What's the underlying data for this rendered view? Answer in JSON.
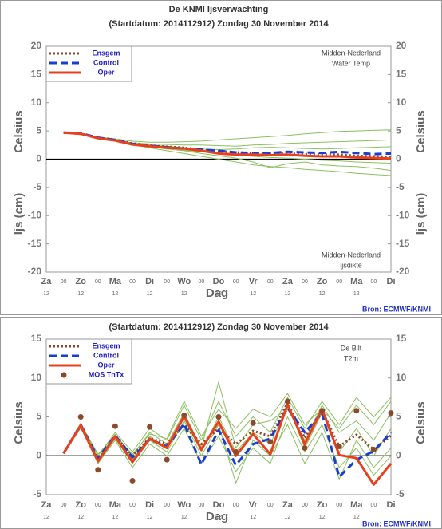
{
  "chart_data": [
    {
      "type": "line",
      "title": "De KNMI Ijsverwachting",
      "subtitle": "(Startdatum: 2014112912)   Zondag    30 November  2014",
      "categories": [
        "Za",
        "00",
        "Zo",
        "00",
        "Ma",
        "00",
        "Di",
        "00",
        "Wo",
        "00",
        "Do",
        "00",
        "Vr",
        "00",
        "Za",
        "00",
        "Zo",
        "00",
        "Ma",
        "00",
        "Di"
      ],
      "sublabels": [
        "12",
        null,
        "12",
        null,
        "12",
        null,
        "12",
        null,
        "12",
        null,
        "12",
        null,
        "12",
        null,
        "12",
        null,
        "12",
        null,
        "12",
        null,
        null
      ],
      "xlabel": "Dag",
      "ylabel": [
        "Celsius",
        "Ijs (cm)"
      ],
      "ylim": [
        -20,
        20
      ],
      "yticks": [
        -20,
        -15,
        -10,
        -5,
        0,
        5,
        10,
        15,
        20
      ],
      "annotations": [
        "Midden-Nederland",
        "Water Temp",
        "Midden-Nederland",
        "ijsdikte"
      ],
      "source": "Bron: ECMWF/KNMI",
      "legend": "top-left",
      "zero_line": true,
      "series": [
        {
          "color": "#8cbf60",
          "style": "member",
          "values": [
            null,
            4.7,
            4.6,
            3.9,
            3.6,
            3.2,
            3.0,
            3.0,
            3.1,
            3.2,
            3.4,
            3.6,
            3.8,
            4.0,
            4.2,
            4.5,
            4.7,
            4.9,
            5.0,
            5.1,
            5.2
          ]
        },
        {
          "color": "#8cbf60",
          "style": "member",
          "values": [
            null,
            4.7,
            4.5,
            3.7,
            3.2,
            2.5,
            2.0,
            1.5,
            1.0,
            0.5,
            0.0,
            -0.5,
            -1.0,
            -1.3,
            -1.5,
            -1.8,
            -2.0,
            -2.2,
            -2.5,
            -2.7,
            -2.9
          ]
        },
        {
          "color": "#8cbf60",
          "style": "member",
          "values": [
            null,
            4.7,
            4.5,
            3.8,
            3.4,
            2.9,
            2.7,
            2.6,
            2.5,
            2.5,
            2.4,
            2.3,
            2.5,
            2.6,
            2.8,
            2.9,
            3.0,
            3.1,
            3.2,
            3.3,
            3.4
          ]
        },
        {
          "color": "#8cbf60",
          "style": "member",
          "values": [
            null,
            4.7,
            4.5,
            3.7,
            3.3,
            2.6,
            2.2,
            1.8,
            1.5,
            1.0,
            0.6,
            0.2,
            -0.5,
            -1.5,
            -0.8,
            -0.5,
            -1.0,
            -1.2,
            -1.3,
            -1.6,
            -2.0
          ]
        },
        {
          "color": "#8cbf60",
          "style": "member",
          "values": [
            null,
            4.7,
            4.5,
            3.8,
            3.4,
            2.8,
            2.5,
            2.3,
            2.0,
            1.8,
            1.7,
            1.8,
            2.0,
            2.1,
            2.0,
            1.9,
            1.8,
            1.9,
            2.0,
            2.1,
            2.2
          ]
        },
        {
          "color": "#8cbf60",
          "style": "member",
          "values": [
            null,
            4.7,
            4.6,
            3.8,
            3.3,
            2.7,
            2.3,
            2.0,
            1.6,
            1.3,
            1.0,
            0.8,
            0.5,
            0.3,
            0.2,
            0.0,
            -0.2,
            -0.3,
            -0.5,
            -0.6,
            -0.7
          ]
        },
        {
          "name": "Ensgem",
          "color": "#8b4a2b",
          "style": "dotted",
          "values": [
            null,
            4.7,
            4.5,
            3.8,
            3.4,
            2.8,
            2.4,
            2.2,
            2.0,
            1.7,
            1.4,
            1.2,
            1.1,
            1.0,
            1.0,
            0.9,
            0.8,
            0.8,
            0.6,
            0.5,
            0.4
          ]
        },
        {
          "name": "Control",
          "color": "#1a3fd0",
          "style": "dashed",
          "values": [
            null,
            4.7,
            4.6,
            3.8,
            3.4,
            2.7,
            2.4,
            2.1,
            1.9,
            1.7,
            1.5,
            1.2,
            1.1,
            1.1,
            1.3,
            1.2,
            1.1,
            1.3,
            1.1,
            0.9,
            1.0
          ]
        },
        {
          "name": "Oper",
          "color": "#e8401c",
          "style": "solid",
          "values": [
            null,
            4.7,
            4.5,
            3.7,
            3.3,
            2.6,
            2.3,
            2.0,
            1.9,
            1.5,
            1.0,
            0.8,
            0.8,
            0.7,
            0.8,
            0.6,
            0.5,
            0.5,
            0.3,
            0.2,
            0.1
          ]
        }
      ]
    },
    {
      "type": "line",
      "subtitle": "(Startdatum: 2014112912)   Zondag    30 November  2014",
      "categories": [
        "Za",
        "00",
        "Zo",
        "00",
        "Ma",
        "00",
        "Di",
        "00",
        "Wo",
        "00",
        "Do",
        "00",
        "Vr",
        "00",
        "Za",
        "00",
        "Zo",
        "00",
        "Ma",
        "00",
        "Di"
      ],
      "sublabels": [
        "12",
        null,
        "12",
        null,
        "12",
        null,
        "12",
        null,
        "12",
        null,
        "12",
        null,
        "12",
        null,
        "12",
        null,
        "12",
        null,
        "12",
        null,
        null
      ],
      "xlabel": "Dag",
      "ylabel": [
        "Celsius"
      ],
      "ylim": [
        -5,
        15
      ],
      "yticks": [
        -5,
        0,
        5,
        10,
        15
      ],
      "annotations": [
        "De Bilt",
        "T2m"
      ],
      "source": "Bron: ECMWF/KNMI",
      "legend": "top-left",
      "zero_line": true,
      "series": [
        {
          "color": "#8cbf60",
          "style": "member",
          "values": [
            null,
            0.3,
            4.2,
            0.0,
            3.0,
            0.5,
            3.5,
            2.0,
            6.5,
            2.0,
            7.0,
            2.5,
            5.0,
            3.0,
            7.5,
            3.5,
            7.0,
            4.0,
            7.5,
            5.0,
            7.5
          ]
        },
        {
          "color": "#8cbf60",
          "style": "member",
          "values": [
            null,
            0.3,
            3.6,
            -1.0,
            2.0,
            -1.5,
            1.5,
            0.0,
            3.5,
            -1.0,
            2.5,
            -2.0,
            1.0,
            -1.0,
            5.0,
            0.5,
            4.0,
            -1.5,
            1.0,
            -2.5,
            0.0
          ]
        },
        {
          "color": "#8cbf60",
          "style": "member",
          "values": [
            null,
            0.3,
            4.0,
            -0.5,
            2.8,
            0.0,
            3.0,
            1.5,
            5.5,
            1.0,
            9.5,
            1.0,
            4.0,
            4.5,
            6.0,
            2.0,
            6.5,
            3.0,
            4.5,
            2.0,
            5.5
          ]
        },
        {
          "color": "#8cbf60",
          "style": "member",
          "values": [
            null,
            0.3,
            3.8,
            -0.8,
            2.2,
            -1.0,
            2.0,
            0.5,
            4.5,
            0.0,
            4.0,
            -3.5,
            2.0,
            0.0,
            4.0,
            -1.0,
            3.0,
            -3.0,
            2.0,
            -1.5,
            1.0
          ]
        },
        {
          "color": "#8cbf60",
          "style": "member",
          "values": [
            null,
            0.3,
            4.1,
            0.2,
            2.6,
            0.2,
            2.8,
            2.2,
            7.0,
            2.5,
            6.0,
            3.5,
            6.0,
            5.0,
            8.0,
            4.0,
            6.0,
            3.5,
            6.5,
            4.0,
            7.0
          ]
        },
        {
          "color": "#8cbf60",
          "style": "member",
          "values": [
            null,
            0.3,
            3.9,
            -0.3,
            2.4,
            -0.5,
            2.5,
            1.0,
            4.8,
            0.5,
            5.0,
            0.5,
            3.0,
            1.5,
            6.5,
            1.0,
            5.5,
            0.5,
            3.5,
            0.0,
            3.5
          ]
        },
        {
          "name": "Ensgem",
          "color": "#8b4a2b",
          "style": "dotted",
          "values": [
            null,
            0.3,
            3.8,
            -0.5,
            2.5,
            0.0,
            2.3,
            1.5,
            4.0,
            1.5,
            3.5,
            1.5,
            3.2,
            2.5,
            6.8,
            2.3,
            5.8,
            1.2,
            2.7,
            0.8,
            2.6
          ]
        },
        {
          "name": "Control",
          "color": "#1a3fd0",
          "style": "dashed",
          "values": [
            null,
            0.3,
            4.0,
            -0.3,
            2.6,
            -0.2,
            2.1,
            1.2,
            4.1,
            -1.1,
            3.3,
            -1.2,
            1.5,
            2.2,
            6.2,
            3.0,
            5.5,
            -2.7,
            -0.5,
            0.6,
            3.0
          ]
        },
        {
          "name": "Oper",
          "color": "#e8401c",
          "style": "solid",
          "values": [
            null,
            0.3,
            3.9,
            -0.7,
            2.5,
            -0.8,
            2.2,
            1.0,
            5.1,
            0.8,
            4.4,
            0.0,
            2.8,
            0.2,
            6.6,
            1.5,
            6.0,
            0.1,
            -0.3,
            -3.7,
            -1.0
          ]
        },
        {
          "name": "MOS TnTx",
          "color": "#8b4a2b",
          "style": "marker",
          "values": [
            null,
            null,
            5.0,
            -1.8,
            3.8,
            -3.2,
            3.7,
            -0.5,
            5.2,
            null,
            5.0,
            0.5,
            4.2,
            1.8,
            7.0,
            1.0,
            5.8,
            1.2,
            5.8,
            0.8,
            5.5
          ]
        }
      ]
    }
  ]
}
